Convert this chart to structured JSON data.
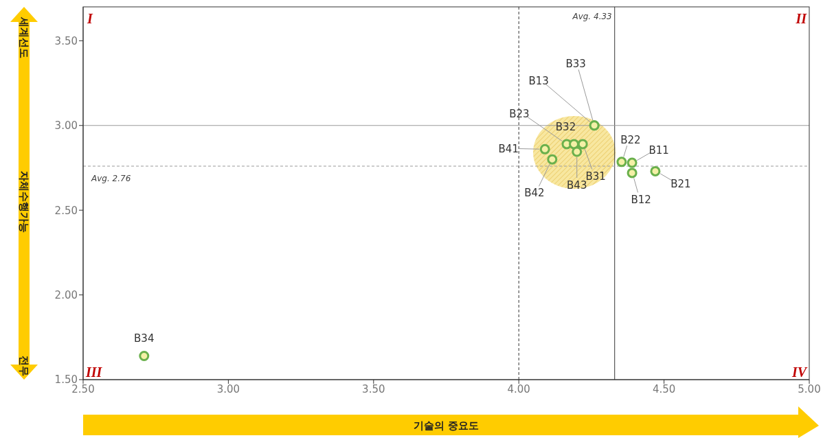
{
  "chart_data": {
    "type": "scatter",
    "xlabel": "기술의 중요도",
    "x": [
      4.26,
      4.26,
      4.165,
      4.19,
      4.22,
      4.2,
      4.09,
      4.115,
      4.354,
      4.39,
      4.39,
      4.47,
      2.71
    ],
    "series": [
      {
        "color": "#6ab04c",
        "values": [
          3.0,
          3.0,
          2.89,
          2.89,
          2.89,
          2.845,
          2.86,
          2.8,
          2.785,
          2.78,
          2.72,
          2.73,
          1.64
        ]
      }
    ],
    "marker": "circle",
    "xlim": [
      2.5,
      5
    ],
    "xticks": [
      {
        "value": 2.5,
        "label": "2.50"
      },
      {
        "value": 3,
        "label": "3.00"
      },
      {
        "value": 3.5,
        "label": "3.50"
      },
      {
        "value": 4,
        "label": "4.00"
      },
      {
        "value": 4.5,
        "label": "4.50"
      },
      {
        "value": 5,
        "label": "5.00"
      }
    ],
    "ylim": [
      1.5,
      3.7
    ],
    "yticks": [
      {
        "value": 1.5,
        "label": "1.50"
      },
      {
        "value": 2,
        "label": "2.00"
      },
      {
        "value": 2.5,
        "label": "2.50"
      },
      {
        "value": 3,
        "label": "3.00"
      },
      {
        "value": 3.5,
        "label": "3.50"
      }
    ],
    "ref_lines": [
      {
        "axis": "x",
        "value": 4.0,
        "color": "#333333",
        "line_style": "dashed"
      },
      {
        "axis": "x",
        "value": 4.33,
        "label": "Avg. 4.33",
        "color": "#333333",
        "line_style": "solid"
      },
      {
        "axis": "y",
        "value": 3.0,
        "color": "#999999",
        "line_style": "solid"
      },
      {
        "axis": "y",
        "value": 2.76,
        "label": "Avg. 2.76",
        "color": "#999999",
        "line_style": "dashed"
      }
    ],
    "annotations": [
      "I",
      "II",
      "III",
      "IV",
      "세계선도",
      "자체수행가능",
      "전무",
      {
        "text": "B33",
        "x": 4.26,
        "y": 3.0
      },
      {
        "text": "B13",
        "x": 4.26,
        "y": 3.0
      },
      {
        "text": "B23",
        "x": 4.165,
        "y": 2.89
      },
      {
        "text": "B32",
        "x": 4.19,
        "y": 2.89
      },
      {
        "text": "B31",
        "x": 4.22,
        "y": 2.89
      },
      {
        "text": "B43",
        "x": 4.2,
        "y": 2.845
      },
      {
        "text": "B41",
        "x": 4.09,
        "y": 2.86
      },
      {
        "text": "B42",
        "x": 4.115,
        "y": 2.8
      },
      {
        "text": "B22",
        "x": 4.354,
        "y": 2.785
      },
      {
        "text": "B11",
        "x": 4.39,
        "y": 2.78
      },
      {
        "text": "B12",
        "x": 4.39,
        "y": 2.72
      },
      {
        "text": "B21",
        "x": 4.47,
        "y": 2.73
      },
      {
        "text": "B34",
        "x": 2.71,
        "y": 1.64
      }
    ]
  }
}
